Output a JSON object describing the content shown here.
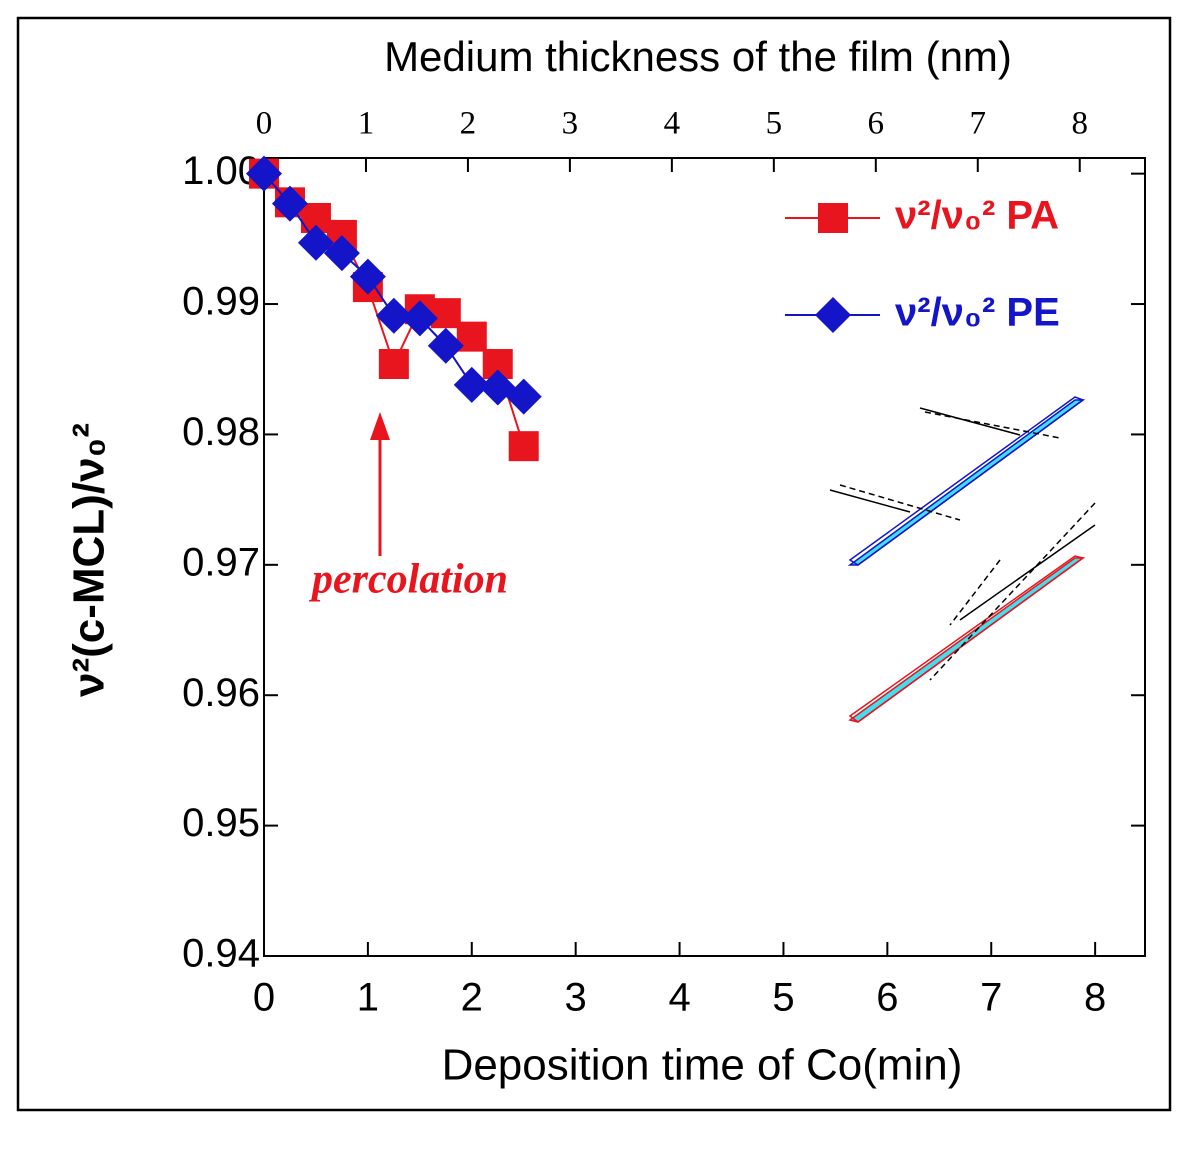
{
  "chart_data": {
    "type": "line",
    "title": "Medium thickness of the film (nm)",
    "x_label": "Deposition time of Co(min)",
    "y_label": "ν²(c-MCL)/ν₀²",
    "annotation": "percolation",
    "xlim": [
      0,
      8.48
    ],
    "xticks": [
      0,
      1,
      2,
      3,
      4,
      5,
      6,
      7,
      8
    ],
    "x2lim": [
      0,
      8.64
    ],
    "x2ticks": [
      0,
      1,
      2,
      3,
      4,
      5,
      6,
      7,
      8
    ],
    "ylim": [
      0.94,
      1.0012
    ],
    "yticks": [
      0.94,
      0.95,
      0.96,
      0.97,
      0.98,
      0.99,
      {
        "value": 1,
        "label": "1.00"
      }
    ],
    "x": [
      0,
      0.25,
      0.5,
      0.75,
      1.0,
      1.25,
      1.5,
      1.75,
      2.0,
      2.25,
      2.5
    ],
    "series": [
      {
        "name": "ν²/ν₀² PA",
        "color": "#e8141e",
        "marker": "square",
        "values": [
          1.0,
          0.9978,
          0.9966,
          0.9953,
          0.9913,
          0.9854,
          0.9896,
          0.9893,
          0.9875,
          0.9854,
          0.9791
        ]
      },
      {
        "name": "ν²/ν₀² PE",
        "color": "#1414c8",
        "marker": "diamond",
        "values": [
          1.0,
          0.9977,
          0.9947,
          0.9939,
          0.9921,
          0.9891,
          0.9889,
          0.9868,
          0.9838,
          0.9836,
          0.9829
        ]
      }
    ]
  }
}
